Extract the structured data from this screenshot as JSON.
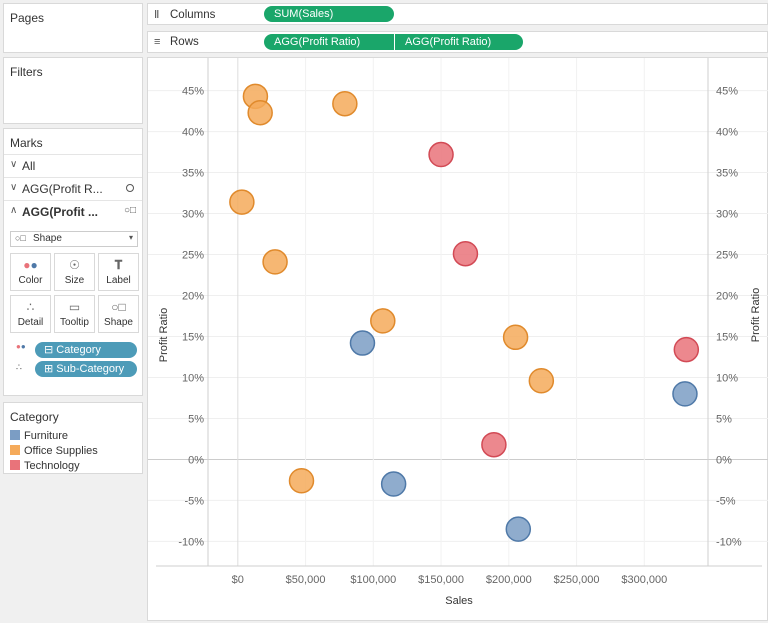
{
  "left_panel": {
    "pages_title": "Pages",
    "filters_title": "Filters",
    "marks_title": "Marks",
    "marks_rows": [
      {
        "label": "All",
        "bold": false
      },
      {
        "label": "AGG(Profit R...",
        "bold": false
      },
      {
        "label": "AGG(Profit ...",
        "bold": true
      }
    ],
    "mark_type": "Shape",
    "mark_buttons": [
      "Color",
      "Size",
      "Label",
      "Detail",
      "Tooltip",
      "Shape"
    ],
    "mark_pills": [
      "Category",
      "Sub-Category"
    ],
    "legend_title": "Category",
    "legend_items": [
      {
        "label": "Furniture",
        "color": "#7b9dc4"
      },
      {
        "label": "Office Supplies",
        "color": "#f5aa5a"
      },
      {
        "label": "Technology",
        "color": "#e9737a"
      }
    ]
  },
  "shelves": {
    "columns_label": "Columns",
    "columns_pills": [
      "SUM(Sales)"
    ],
    "rows_label": "Rows",
    "rows_pills": [
      "AGG(Profit Ratio)",
      "AGG(Profit Ratio)"
    ]
  },
  "chart_data": {
    "type": "scatter",
    "xlabel": "Sales",
    "ylabel": "Profit Ratio",
    "ylabel_right": "Profit Ratio",
    "xlim": [
      -22000,
      347000
    ],
    "ylim": [
      -13,
      48
    ],
    "x_ticks": [
      0,
      50000,
      100000,
      150000,
      200000,
      250000,
      300000
    ],
    "x_tick_labels": [
      "$0",
      "$50,000",
      "$100,000",
      "$150,000",
      "$200,000",
      "$250,000",
      "$300,000"
    ],
    "y_ticks": [
      45,
      40,
      35,
      30,
      25,
      20,
      15,
      10,
      5,
      0,
      -5,
      -10
    ],
    "y_tick_labels": [
      "45%",
      "40%",
      "35%",
      "30%",
      "25%",
      "20%",
      "15%",
      "10%",
      "5%",
      "0%",
      "-5%",
      "-10%"
    ],
    "grid": true,
    "series": [
      {
        "name": "Furniture",
        "color": "#7b9dc4",
        "stroke": "#4f79a8",
        "points": [
          [
            92000,
            14.2
          ],
          [
            115000,
            -3
          ],
          [
            207000,
            -8.5
          ],
          [
            330000,
            8
          ]
        ]
      },
      {
        "name": "Office Supplies",
        "color": "#f5aa5a",
        "stroke": "#e08a2c",
        "points": [
          [
            13000,
            44.3
          ],
          [
            16500,
            42.3
          ],
          [
            79000,
            43.4
          ],
          [
            3000,
            31.4
          ],
          [
            27500,
            24.1
          ],
          [
            107000,
            16.9
          ],
          [
            205000,
            14.9
          ],
          [
            224000,
            9.6
          ],
          [
            47000,
            -2.6
          ]
        ]
      },
      {
        "name": "Technology",
        "color": "#e9737a",
        "stroke": "#d24a55",
        "points": [
          [
            150000,
            37.2
          ],
          [
            168000,
            25.1
          ],
          [
            331000,
            13.4
          ],
          [
            189000,
            1.8
          ]
        ]
      }
    ]
  }
}
